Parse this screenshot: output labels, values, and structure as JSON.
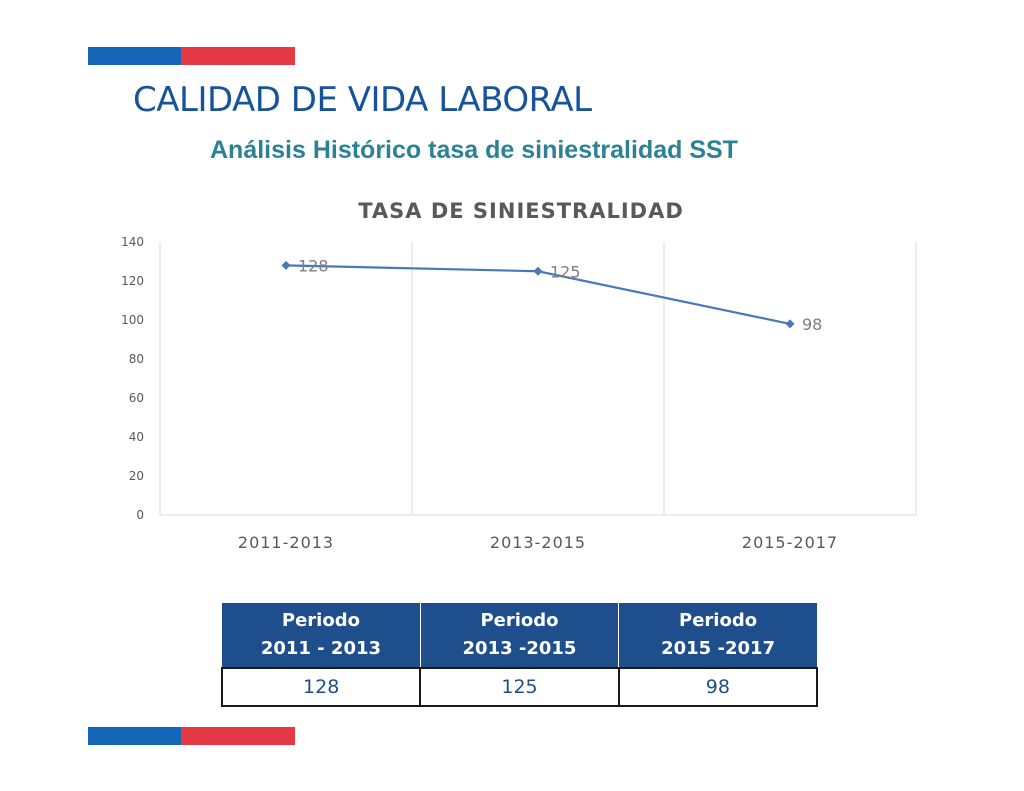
{
  "colors": {
    "brand_blue": "#1565b8",
    "brand_red": "#e63946",
    "title_blue": "#17539a",
    "subtitle_teal": "#2c8294",
    "series_line": "#4a78b8",
    "table_header": "#1f4e8c"
  },
  "header": {
    "title": "CALIDAD DE VIDA LABORAL",
    "subtitle": "Análisis Histórico tasa de siniestralidad SST"
  },
  "chart_data": {
    "type": "line",
    "title": "TASA DE SINIESTRALIDAD",
    "xlabel": "",
    "ylabel": "",
    "categories": [
      "2011-2013",
      "2013-2015",
      "2015-2017"
    ],
    "series": [
      {
        "values": [
          128,
          125,
          98
        ]
      }
    ],
    "data_labels": [
      "128",
      "125",
      "98"
    ],
    "ylim": [
      0,
      140
    ],
    "yticks": [
      0,
      20,
      40,
      60,
      80,
      100,
      120,
      140
    ],
    "grid": "vertical",
    "legend": "none"
  },
  "table": {
    "headers": [
      {
        "line1": "Periodo",
        "line2": "2011 - 2013"
      },
      {
        "line1": "Periodo",
        "line2": "2013 -2015"
      },
      {
        "line1": "Periodo",
        "line2": "2015 -2017"
      }
    ],
    "values": [
      "128",
      "125",
      "98"
    ]
  }
}
